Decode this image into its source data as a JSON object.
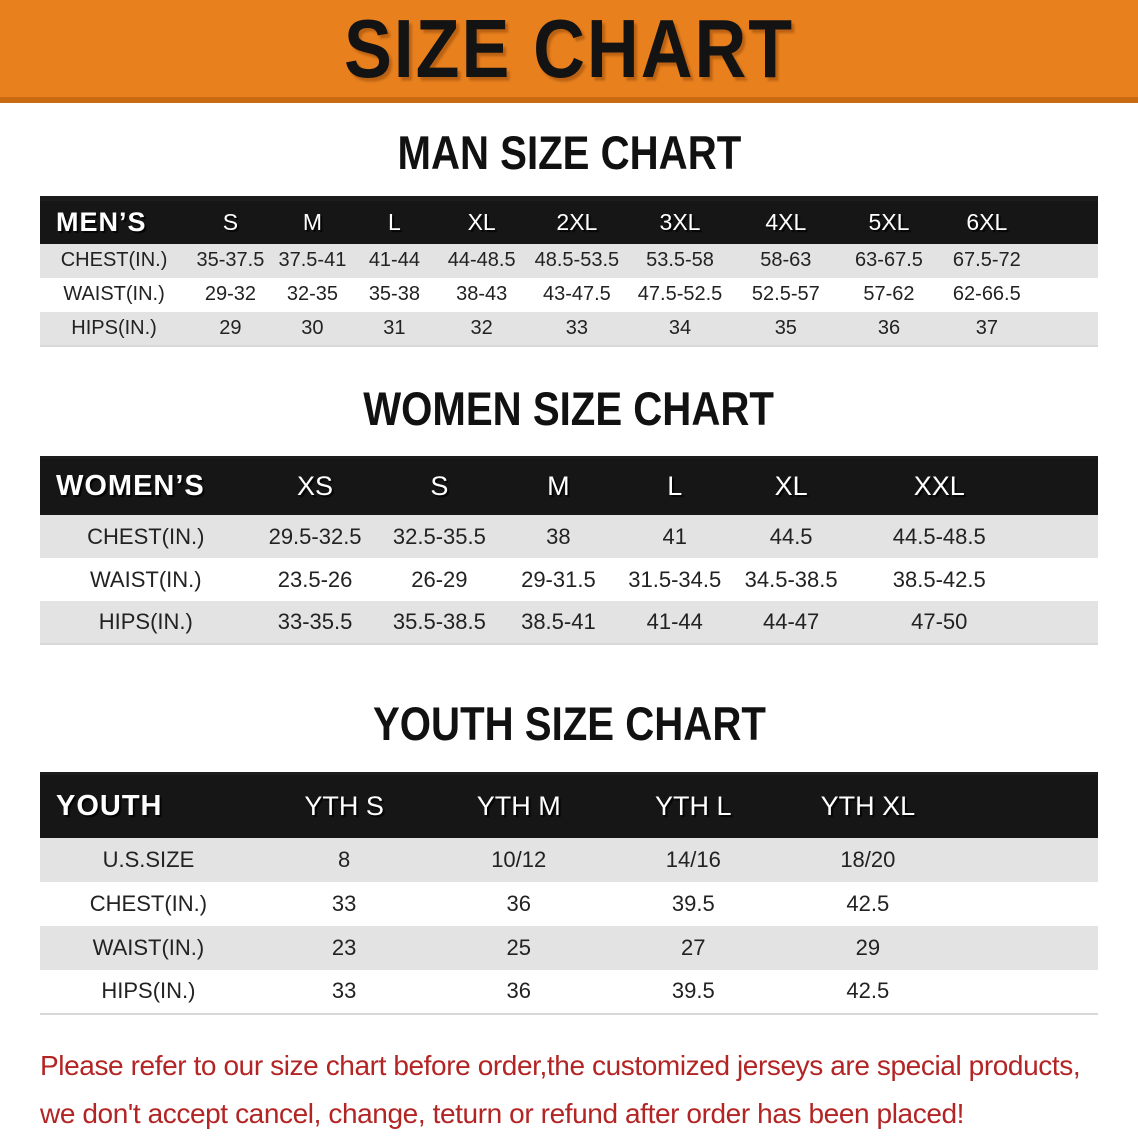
{
  "banner": {
    "title": "SIZE CHART"
  },
  "sections": {
    "men": {
      "heading": "MAN SIZE CHART",
      "table": {
        "label": "MEN’S",
        "columns": [
          "S",
          "M",
          "L",
          "XL",
          "2XL",
          "3XL",
          "4XL",
          "5XL",
          "6XL"
        ],
        "rows": [
          {
            "label": "CHEST(IN.)",
            "values": [
              "35-37.5",
              "37.5-41",
              "41-44",
              "44-48.5",
              "48.5-53.5",
              "53.5-58",
              "58-63",
              "63-67.5",
              "67.5-72"
            ]
          },
          {
            "label": "WAIST(IN.)",
            "values": [
              "29-32",
              "32-35",
              "35-38",
              "38-43",
              "43-47.5",
              "47.5-52.5",
              "52.5-57",
              "57-62",
              "62-66.5"
            ]
          },
          {
            "label": "HIPS(IN.)",
            "values": [
              "29",
              "30",
              "31",
              "32",
              "33",
              "34",
              "35",
              "36",
              "37"
            ]
          }
        ]
      }
    },
    "women": {
      "heading": "WOMEN SIZE CHART",
      "table": {
        "label": "WOMEN’S",
        "columns": [
          "XS",
          "S",
          "M",
          "L",
          "XL",
          "XXL"
        ],
        "rows": [
          {
            "label": "CHEST(IN.)",
            "values": [
              "29.5-32.5",
              "32.5-35.5",
              "38",
              "41",
              "44.5",
              "44.5-48.5"
            ]
          },
          {
            "label": "WAIST(IN.)",
            "values": [
              "23.5-26",
              "26-29",
              "29-31.5",
              "31.5-34.5",
              "34.5-38.5",
              "38.5-42.5"
            ]
          },
          {
            "label": "HIPS(IN.)",
            "values": [
              "33-35.5",
              "35.5-38.5",
              "38.5-41",
              "41-44",
              "44-47",
              "47-50"
            ]
          }
        ]
      }
    },
    "youth": {
      "heading": "YOUTH SIZE CHART",
      "table": {
        "label": "YOUTH",
        "columns": [
          "YTH S",
          "YTH M",
          "YTH L",
          "YTH XL"
        ],
        "rows": [
          {
            "label": "U.S.SIZE",
            "values": [
              "8",
              "10/12",
              "14/16",
              "18/20"
            ]
          },
          {
            "label": "CHEST(IN.)",
            "values": [
              "33",
              "36",
              "39.5",
              "42.5"
            ]
          },
          {
            "label": "WAIST(IN.)",
            "values": [
              "23",
              "25",
              "27",
              "29"
            ]
          },
          {
            "label": "HIPS(IN.)",
            "values": [
              "33",
              "36",
              "39.5",
              "42.5"
            ]
          }
        ]
      }
    }
  },
  "disclaimer": {
    "line1": "Please refer to our size chart before order,the customized jerseys are special products,",
    "line2": "we don't accept cancel, change, teturn or refund after order has been placed!"
  },
  "colors": {
    "banner_background": "#E8801E",
    "banner_border": "#C96A10",
    "header_band": "#161616",
    "row_stripe": "#E3E3E3",
    "disclaimer_text": "#B32424"
  }
}
